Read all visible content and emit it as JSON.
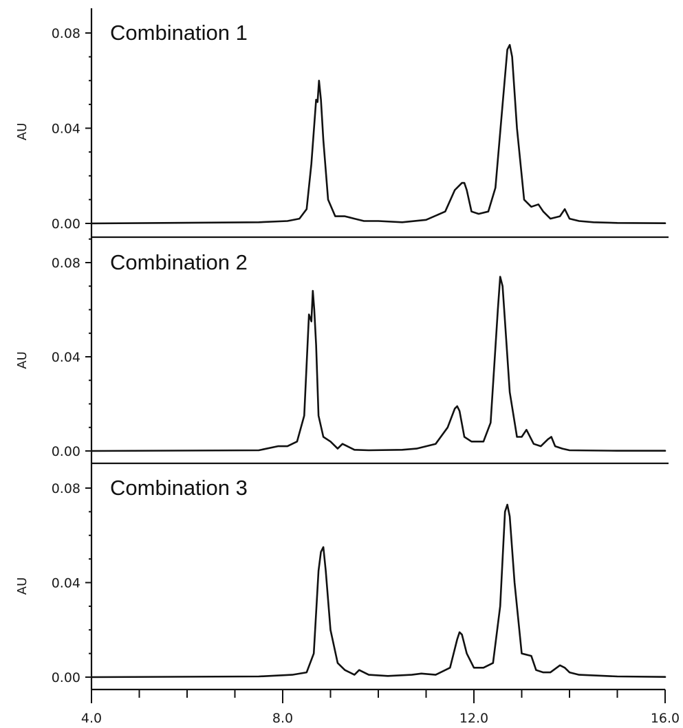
{
  "chart_data": [
    {
      "type": "line",
      "title": "Combination 1",
      "xlabel": "",
      "ylabel": "AU",
      "xlim": [
        4.0,
        16.0
      ],
      "ylim": [
        0.0,
        0.08
      ],
      "ytick_labels": [
        "0.08",
        "0.04",
        "0.00"
      ],
      "yticks": [
        0.08,
        0.04,
        0.0
      ],
      "series": [
        {
          "x": [
            4.0,
            7.5,
            8.1,
            8.35,
            8.5,
            8.6,
            8.7,
            8.73,
            8.76,
            8.8,
            8.85,
            8.95,
            9.1,
            9.3,
            9.5,
            9.7,
            10.0,
            10.5,
            11.0,
            11.4,
            11.6,
            11.75,
            11.8,
            11.85,
            11.95,
            12.1,
            12.3,
            12.45,
            12.6,
            12.7,
            12.75,
            12.8,
            12.9,
            13.05,
            13.2,
            13.35,
            13.45,
            13.6,
            13.8,
            13.9,
            14.0,
            14.2,
            14.5,
            15.0,
            16.0
          ],
          "y": [
            0.0,
            0.0005,
            0.001,
            0.002,
            0.006,
            0.025,
            0.052,
            0.051,
            0.06,
            0.052,
            0.035,
            0.01,
            0.003,
            0.003,
            0.002,
            0.001,
            0.001,
            0.0005,
            0.0015,
            0.005,
            0.014,
            0.017,
            0.017,
            0.014,
            0.005,
            0.004,
            0.005,
            0.015,
            0.05,
            0.073,
            0.075,
            0.07,
            0.04,
            0.01,
            0.007,
            0.008,
            0.005,
            0.002,
            0.003,
            0.006,
            0.002,
            0.001,
            0.0005,
            0.0002,
            0.0001
          ]
        }
      ]
    },
    {
      "type": "line",
      "title": "Combination 2",
      "xlabel": "",
      "ylabel": "AU",
      "xlim": [
        4.0,
        16.0
      ],
      "ylim": [
        0.0,
        0.08
      ],
      "ytick_labels": [
        "0.08",
        "0.04",
        "0.00"
      ],
      "yticks": [
        0.08,
        0.04,
        0.0
      ],
      "series": [
        {
          "x": [
            4.0,
            7.5,
            7.9,
            8.1,
            8.3,
            8.45,
            8.55,
            8.6,
            8.63,
            8.66,
            8.7,
            8.75,
            8.85,
            9.0,
            9.15,
            9.25,
            9.35,
            9.5,
            9.8,
            10.5,
            10.8,
            11.2,
            11.45,
            11.6,
            11.65,
            11.7,
            11.8,
            11.95,
            12.2,
            12.35,
            12.5,
            12.55,
            12.6,
            12.65,
            12.75,
            12.9,
            13.0,
            13.1,
            13.25,
            13.4,
            13.55,
            13.62,
            13.7,
            13.85,
            14.0,
            15.0,
            16.0
          ],
          "y": [
            0.0,
            0.0003,
            0.002,
            0.002,
            0.004,
            0.015,
            0.058,
            0.055,
            0.068,
            0.06,
            0.045,
            0.015,
            0.006,
            0.004,
            0.001,
            0.003,
            0.002,
            0.0005,
            0.0003,
            0.0005,
            0.001,
            0.003,
            0.01,
            0.018,
            0.019,
            0.017,
            0.006,
            0.004,
            0.004,
            0.012,
            0.06,
            0.074,
            0.07,
            0.055,
            0.025,
            0.006,
            0.006,
            0.009,
            0.003,
            0.002,
            0.005,
            0.006,
            0.002,
            0.001,
            0.0003,
            0.0001,
            0.0001
          ]
        }
      ]
    },
    {
      "type": "line",
      "title": "Combination 3",
      "xlabel": "",
      "ylabel": "AU",
      "xlim": [
        4.0,
        16.0
      ],
      "ylim": [
        0.0,
        0.08
      ],
      "ytick_labels": [
        "0.08",
        "0.04",
        "0.00"
      ],
      "yticks": [
        0.08,
        0.04,
        0.0
      ],
      "xtick_labels": [
        "4.0",
        "8.0",
        "12.0",
        "16.0"
      ],
      "xticks": [
        4.0,
        8.0,
        12.0,
        16.0
      ],
      "series": [
        {
          "x": [
            4.0,
            7.5,
            8.2,
            8.5,
            8.65,
            8.75,
            8.8,
            8.85,
            8.9,
            9.0,
            9.15,
            9.3,
            9.5,
            9.6,
            9.8,
            10.2,
            10.7,
            10.9,
            11.2,
            11.5,
            11.65,
            11.7,
            11.75,
            11.85,
            12.0,
            12.2,
            12.4,
            12.55,
            12.65,
            12.7,
            12.75,
            12.85,
            13.0,
            13.2,
            13.3,
            13.45,
            13.6,
            13.8,
            13.9,
            14.0,
            14.2,
            15.0,
            16.0
          ],
          "y": [
            0.0,
            0.0003,
            0.001,
            0.002,
            0.01,
            0.045,
            0.053,
            0.055,
            0.045,
            0.02,
            0.006,
            0.003,
            0.001,
            0.003,
            0.001,
            0.0005,
            0.001,
            0.0015,
            0.001,
            0.004,
            0.016,
            0.019,
            0.018,
            0.01,
            0.004,
            0.004,
            0.006,
            0.03,
            0.07,
            0.073,
            0.068,
            0.04,
            0.01,
            0.009,
            0.003,
            0.002,
            0.002,
            0.005,
            0.004,
            0.002,
            0.001,
            0.0003,
            0.0001
          ]
        }
      ]
    }
  ]
}
